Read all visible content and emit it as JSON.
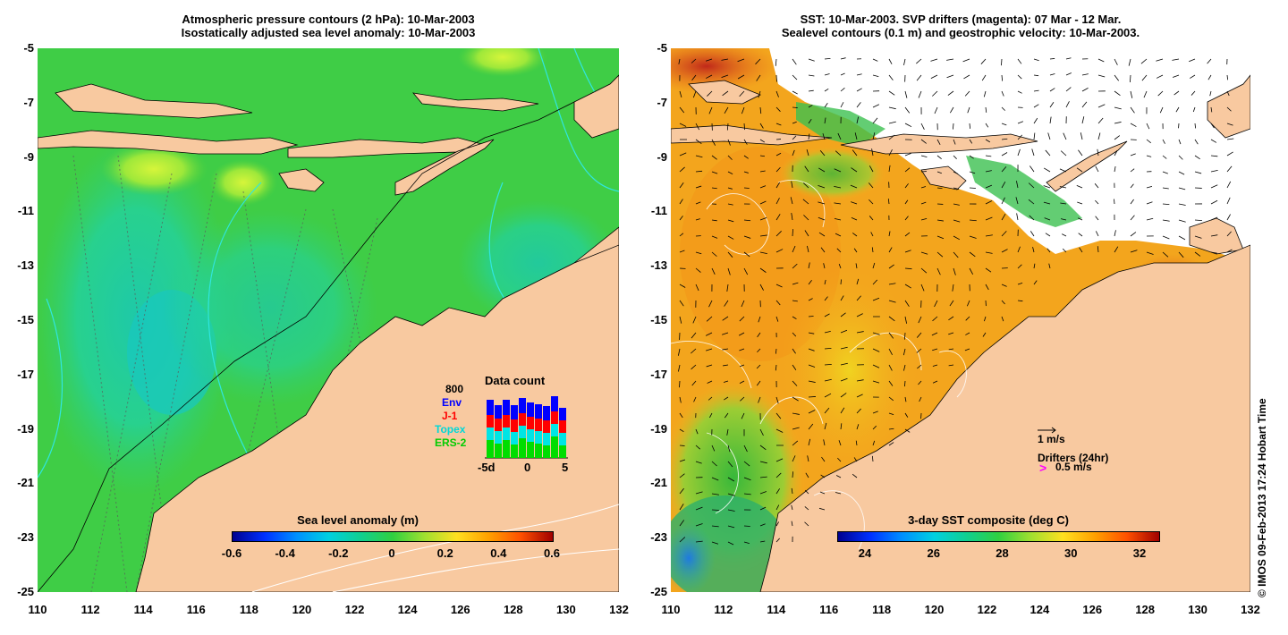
{
  "left": {
    "title_line1": "Atmospheric pressure contours (2 hPa): 10-Mar-2003",
    "title_line2": "Isostatically adjusted sea level anomaly: 10-Mar-2003",
    "colorbar_title": "Sea level anomaly (m)",
    "colorbar_ticks": [
      "-0.6",
      "-0.4",
      "-0.2",
      "0",
      "0.2",
      "0.4",
      "0.6"
    ],
    "data_count": {
      "title": "Data count",
      "max_label": "800",
      "legend": [
        {
          "label": "Env",
          "color": "#0000ff"
        },
        {
          "label": "J-1",
          "color": "#ff0000"
        },
        {
          "label": "Topex",
          "color": "#00e5e5"
        },
        {
          "label": "ERS-2",
          "color": "#00dd00"
        }
      ],
      "x_ticks": [
        "-5d",
        "0",
        "5"
      ]
    }
  },
  "right": {
    "title_line1": "SST: 10-Mar-2003. SVP drifters (magenta): 07 Mar - 12 Mar.",
    "title_line2": "Sealevel contours (0.1 m) and geostrophic velocity: 10-Mar-2003.",
    "colorbar_title": "3-day SST composite (deg C)",
    "colorbar_ticks": [
      "24",
      "26",
      "28",
      "30",
      "32"
    ],
    "velocity_legend": "1 m/s",
    "drifter_legend_title": "Drifters (24hr)",
    "drifter_legend_value": "0.5 m/s",
    "drifter_marker": ">"
  },
  "y_ticks": [
    "-5",
    "-7",
    "-9",
    "-11",
    "-13",
    "-15",
    "-17",
    "-19",
    "-21",
    "-23",
    "-25"
  ],
  "x_ticks": [
    "110",
    "112",
    "114",
    "116",
    "118",
    "120",
    "122",
    "124",
    "126",
    "128",
    "130",
    "132"
  ],
  "credit": "© IMOS 09-Feb-2013 17:24 Hobart Time",
  "colors": {
    "land": "#f8c9a0",
    "sea_green": "#44d13a",
    "sea_teal": "#1fd0a8",
    "sst_orange": "#f3a51d"
  }
}
